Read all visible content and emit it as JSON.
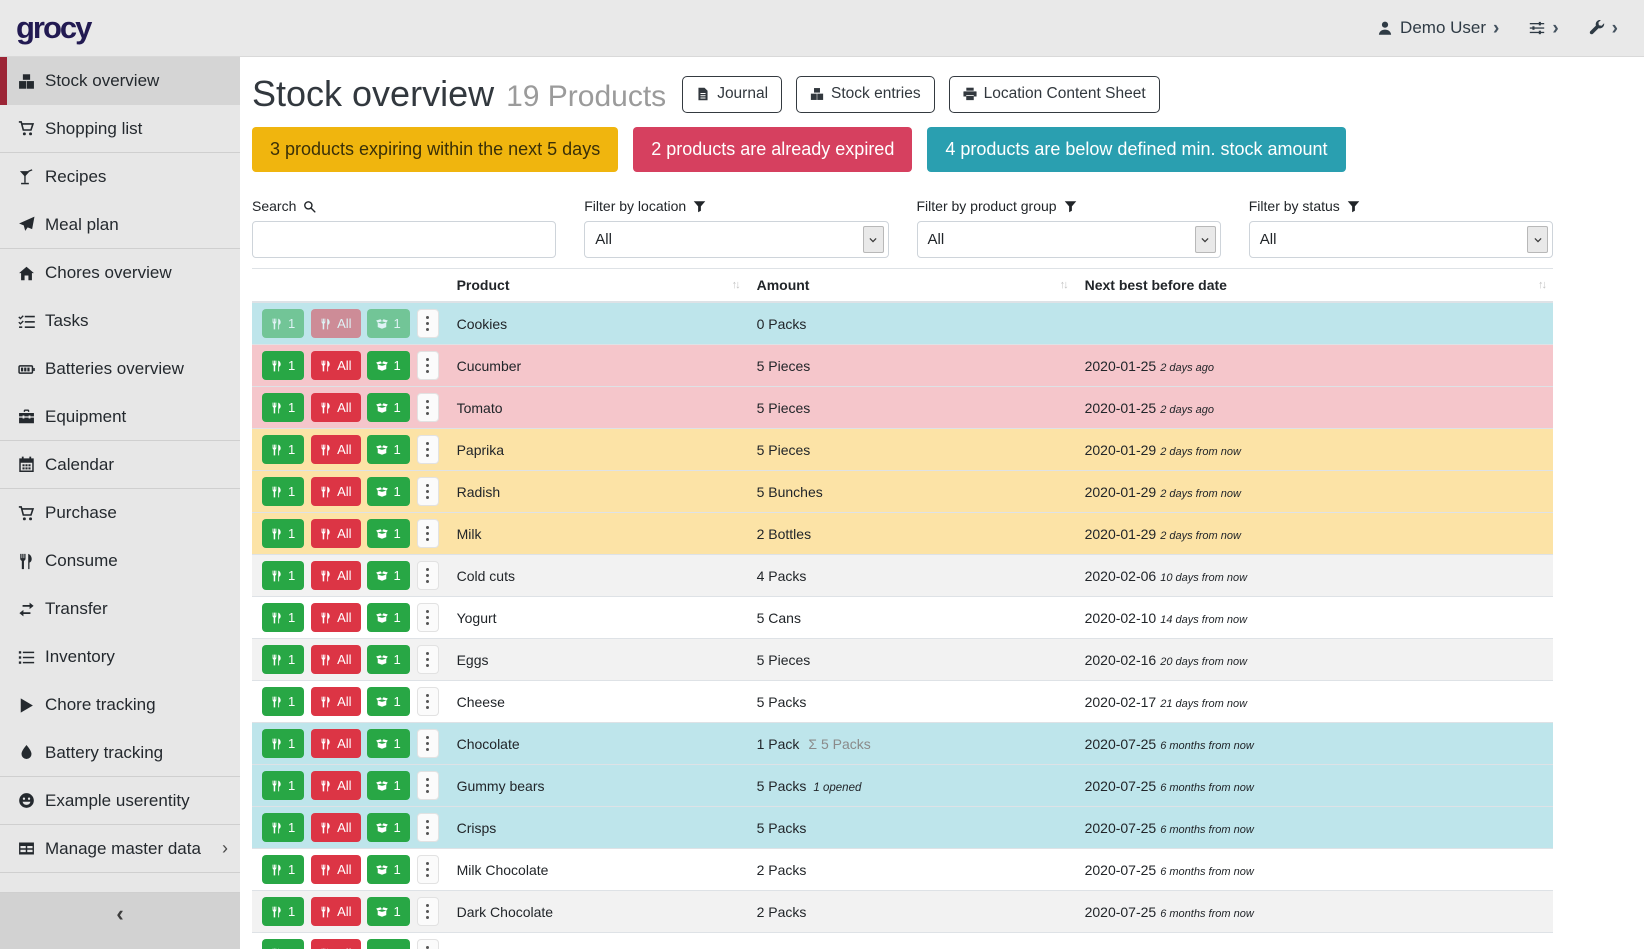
{
  "brand": {
    "logo_text": "grocy"
  },
  "topbar": {
    "user": {
      "label": "Demo User",
      "icon": "user-icon",
      "chevron": "›"
    },
    "settings_menu": {
      "icon": "sliders-icon",
      "chevron": "›"
    },
    "admin_menu": {
      "icon": "wrench-icon",
      "chevron": "›"
    }
  },
  "sidebar": {
    "submenu_chevron": "›",
    "collapse": {
      "icon_char": "‹"
    },
    "items": [
      {
        "label": "Stock overview",
        "icon": "boxes-icon",
        "active": true
      },
      {
        "label": "Shopping list",
        "icon": "cart-icon",
        "divider_after": true
      },
      {
        "label": "Recipes",
        "icon": "cocktail-icon"
      },
      {
        "label": "Meal plan",
        "icon": "paper-plane-icon",
        "divider_after": true
      },
      {
        "label": "Chores overview",
        "icon": "home-icon"
      },
      {
        "label": "Tasks",
        "icon": "tasks-icon"
      },
      {
        "label": "Batteries overview",
        "icon": "battery-icon"
      },
      {
        "label": "Equipment",
        "icon": "toolbox-icon",
        "divider_after": true
      },
      {
        "label": "Calendar",
        "icon": "calendar-icon",
        "divider_after": true
      },
      {
        "label": "Purchase",
        "icon": "cart-icon"
      },
      {
        "label": "Consume",
        "icon": "utensils-icon"
      },
      {
        "label": "Transfer",
        "icon": "exchange-icon"
      },
      {
        "label": "Inventory",
        "icon": "list-icon"
      },
      {
        "label": "Chore tracking",
        "icon": "play-icon"
      },
      {
        "label": "Battery tracking",
        "icon": "tint-icon",
        "divider_after": true
      },
      {
        "label": "Example userentity",
        "icon": "smiley-icon",
        "divider_after": true
      },
      {
        "label": "Manage master data",
        "icon": "table-icon",
        "submenu": true,
        "divider_after": true
      }
    ]
  },
  "page": {
    "title": "Stock overview",
    "subtitle": "19 Products",
    "actions": [
      {
        "label": "Journal",
        "icon": "journal-file-icon"
      },
      {
        "label": "Stock entries",
        "icon": "cubes-icon"
      },
      {
        "label": "Location Content Sheet",
        "icon": "printer-icon"
      }
    ]
  },
  "alerts": [
    {
      "text": "3 products expiring within the next 5 days",
      "type": "warning"
    },
    {
      "text": "2 products are already expired",
      "type": "danger"
    },
    {
      "text": "4 products are below defined min. stock amount",
      "type": "info"
    }
  ],
  "filters": {
    "select_chevron_icon": "chevron-down-icon",
    "search": {
      "label": "Search",
      "icon": "search-icon",
      "value": ""
    },
    "location": {
      "label": "Filter by location",
      "icon": "filter-icon",
      "value": "All"
    },
    "product_group": {
      "label": "Filter by product group",
      "icon": "filter-icon",
      "value": "All"
    },
    "status": {
      "label": "Filter by status",
      "icon": "filter-icon",
      "value": "All"
    }
  },
  "table": {
    "sort_icon": "sort-icon",
    "sum_prefix": "Σ",
    "columns": [
      {
        "label": ""
      },
      {
        "label": "Product",
        "sortable": true
      },
      {
        "label": "Amount",
        "sortable": true
      },
      {
        "label": "Next best before date",
        "sortable": true
      }
    ],
    "row_buttons": {
      "consume_icon": "utensils-icon",
      "open_icon": "box-open-icon",
      "menu_icon": "ellipsis-v-icon",
      "consume_one": "1",
      "consume_all": "All",
      "open_one": "1"
    },
    "rows": [
      {
        "product": "Cookies",
        "amount": "0 Packs",
        "status": "below-min",
        "buttons_disabled": true,
        "date": "",
        "date_relative": ""
      },
      {
        "product": "Cucumber",
        "amount": "5 Pieces",
        "status": "expired",
        "date": "2020-01-25",
        "date_relative": "2 days ago"
      },
      {
        "product": "Tomato",
        "amount": "5 Pieces",
        "status": "expired",
        "date": "2020-01-25",
        "date_relative": "2 days ago"
      },
      {
        "product": "Paprika",
        "amount": "5 Pieces",
        "status": "expiring",
        "date": "2020-01-29",
        "date_relative": "2 days from now"
      },
      {
        "product": "Radish",
        "amount": "5 Bunches",
        "status": "expiring",
        "date": "2020-01-29",
        "date_relative": "2 days from now"
      },
      {
        "product": "Milk",
        "amount": "2 Bottles",
        "status": "expiring",
        "date": "2020-01-29",
        "date_relative": "2 days from now"
      },
      {
        "product": "Cold cuts",
        "amount": "4 Packs",
        "status": "none",
        "date": "2020-02-06",
        "date_relative": "10 days from now"
      },
      {
        "product": "Yogurt",
        "amount": "5 Cans",
        "status": "none",
        "date": "2020-02-10",
        "date_relative": "14 days from now"
      },
      {
        "product": "Eggs",
        "amount": "5 Pieces",
        "status": "none",
        "date": "2020-02-16",
        "date_relative": "20 days from now"
      },
      {
        "product": "Cheese",
        "amount": "5 Packs",
        "status": "none",
        "date": "2020-02-17",
        "date_relative": "21 days from now"
      },
      {
        "product": "Chocolate",
        "amount": "1 Pack",
        "amount_aggregated": "5 Packs",
        "status": "below-min",
        "date": "2020-07-25",
        "date_relative": "6 months from now"
      },
      {
        "product": "Gummy bears",
        "amount": "5 Packs",
        "amount_opened": "1 opened",
        "status": "below-min",
        "date": "2020-07-25",
        "date_relative": "6 months from now"
      },
      {
        "product": "Crisps",
        "amount": "5 Packs",
        "status": "below-min",
        "date": "2020-07-25",
        "date_relative": "6 months from now"
      },
      {
        "product": "Milk Chocolate",
        "amount": "2 Packs",
        "status": "none",
        "date": "2020-07-25",
        "date_relative": "6 months from now"
      },
      {
        "product": "Dark Chocolate",
        "amount": "2 Packs",
        "status": "none",
        "date": "2020-07-25",
        "date_relative": "6 months from now"
      },
      {
        "product": "",
        "amount": "",
        "status": "none",
        "partial": true,
        "date": "",
        "date_relative": ""
      }
    ]
  },
  "colors": {
    "brand_logo": "#221a52",
    "accent_red": "#9c2536",
    "header_bg": "#e9e9e9",
    "sidebar_bg": "#e7e7e7",
    "sidebar_active_bg": "#d5d5d5",
    "sidebar_footer_bg": "#d2d2d2",
    "sidebar_divider": "#cfcfcf",
    "alert_warning_bg": "#f0b50e",
    "alert_warning_text": "#3a3008",
    "alert_danger_bg": "#d6405f",
    "alert_info_bg": "#2a9fb0",
    "row_below_min": "#bee5eb",
    "row_expired": "#f5c6cb",
    "row_expiring": "#fce3a6",
    "row_stripe": "#f2f2f2",
    "btn_green": "#28a745",
    "btn_red": "#dc3545",
    "text_dark": "#212529",
    "text_muted": "#8a8a8a",
    "table_border": "#dee2e6",
    "outline_btn_border": "#343a40"
  }
}
